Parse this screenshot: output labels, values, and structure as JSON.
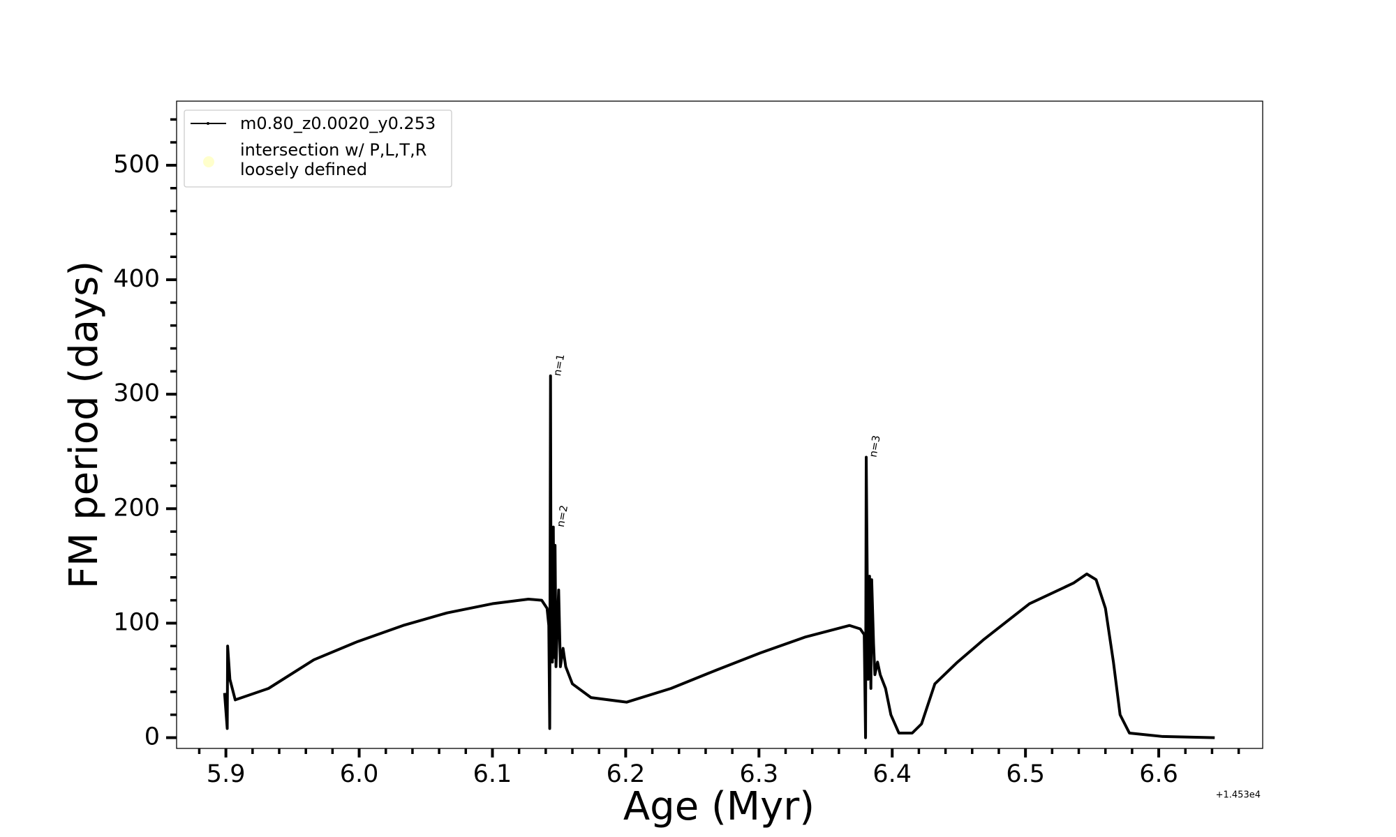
{
  "chart_data": {
    "type": "line",
    "xlabel": "Age (Myr)",
    "ylabel": "FM period (days)",
    "x_offset_label": "+1.453e4",
    "xlim": [
      5.863,
      6.678
    ],
    "ylim": [
      -9.4,
      556
    ],
    "xticks": [
      {
        "value": 5.9,
        "label": "5.9"
      },
      {
        "value": 6.0,
        "label": "6.0"
      },
      {
        "value": 6.1,
        "label": "6.1"
      },
      {
        "value": 6.2,
        "label": "6.2"
      },
      {
        "value": 6.3,
        "label": "6.3"
      },
      {
        "value": 6.4,
        "label": "6.4"
      },
      {
        "value": 6.5,
        "label": "6.5"
      },
      {
        "value": 6.6,
        "label": "6.6"
      }
    ],
    "yticks": [
      0,
      100,
      200,
      300,
      400,
      500
    ],
    "xminorticks": [
      5.88,
      5.92,
      5.94,
      5.96,
      5.98,
      6.02,
      6.04,
      6.06,
      6.08,
      6.12,
      6.14,
      6.16,
      6.18,
      6.22,
      6.24,
      6.26,
      6.28,
      6.32,
      6.34,
      6.36,
      6.38,
      6.42,
      6.44,
      6.46,
      6.48,
      6.52,
      6.54,
      6.56,
      6.58,
      6.62,
      6.64,
      6.66
    ],
    "yminorticks": [
      20,
      40,
      60,
      80,
      120,
      140,
      160,
      180,
      220,
      240,
      260,
      280,
      320,
      340,
      360,
      380,
      420,
      440,
      460,
      480,
      520,
      540
    ],
    "series": [
      {
        "name": "m0.80_z0.0020_y0.253",
        "color": "#000000",
        "x": [
          5.899,
          5.901,
          5.9013,
          5.903,
          5.907,
          5.932,
          5.966,
          5.999,
          6.033,
          6.066,
          6.1,
          6.127,
          6.137,
          6.141,
          6.1423,
          6.143,
          6.1436,
          6.144,
          6.145,
          6.1457,
          6.1463,
          6.147,
          6.1477,
          6.1497,
          6.151,
          6.153,
          6.155,
          6.16,
          6.174,
          6.2007,
          6.234,
          6.268,
          6.301,
          6.335,
          6.368,
          6.376,
          6.379,
          6.38,
          6.3805,
          6.3819,
          6.383,
          6.384,
          6.3846,
          6.386,
          6.387,
          6.389,
          6.391,
          6.395,
          6.399,
          6.405,
          6.415,
          6.422,
          6.432,
          6.449,
          6.469,
          6.503,
          6.536,
          6.546,
          6.553,
          6.56,
          6.566,
          6.571,
          6.578,
          6.603,
          6.642
        ],
        "values": [
          39,
          8,
          80,
          51,
          33,
          43,
          68,
          84,
          98,
          109,
          117,
          121,
          120,
          113,
          98,
          8,
          316,
          98,
          66,
          184,
          70,
          168,
          62,
          129,
          62,
          78,
          62,
          47,
          35,
          31,
          43,
          59,
          74,
          88,
          98,
          95,
          90,
          0,
          245,
          51,
          141,
          43,
          138,
          82,
          55,
          66,
          55,
          43,
          20,
          4,
          4,
          12,
          47,
          66,
          86,
          117,
          135,
          143,
          138,
          113,
          66,
          20,
          4,
          1,
          0
        ]
      }
    ],
    "marker_legend": {
      "color": "#ffffcc",
      "lines": [
        "intersection w/ P,L,T,R",
        "loosely defined"
      ]
    },
    "annotations": [
      {
        "text": "n=1",
        "x": 6.1445,
        "y": 316
      },
      {
        "text": "n=2",
        "x": 6.147,
        "y": 184
      },
      {
        "text": "n=3",
        "x": 6.3815,
        "y": 245
      }
    ]
  }
}
